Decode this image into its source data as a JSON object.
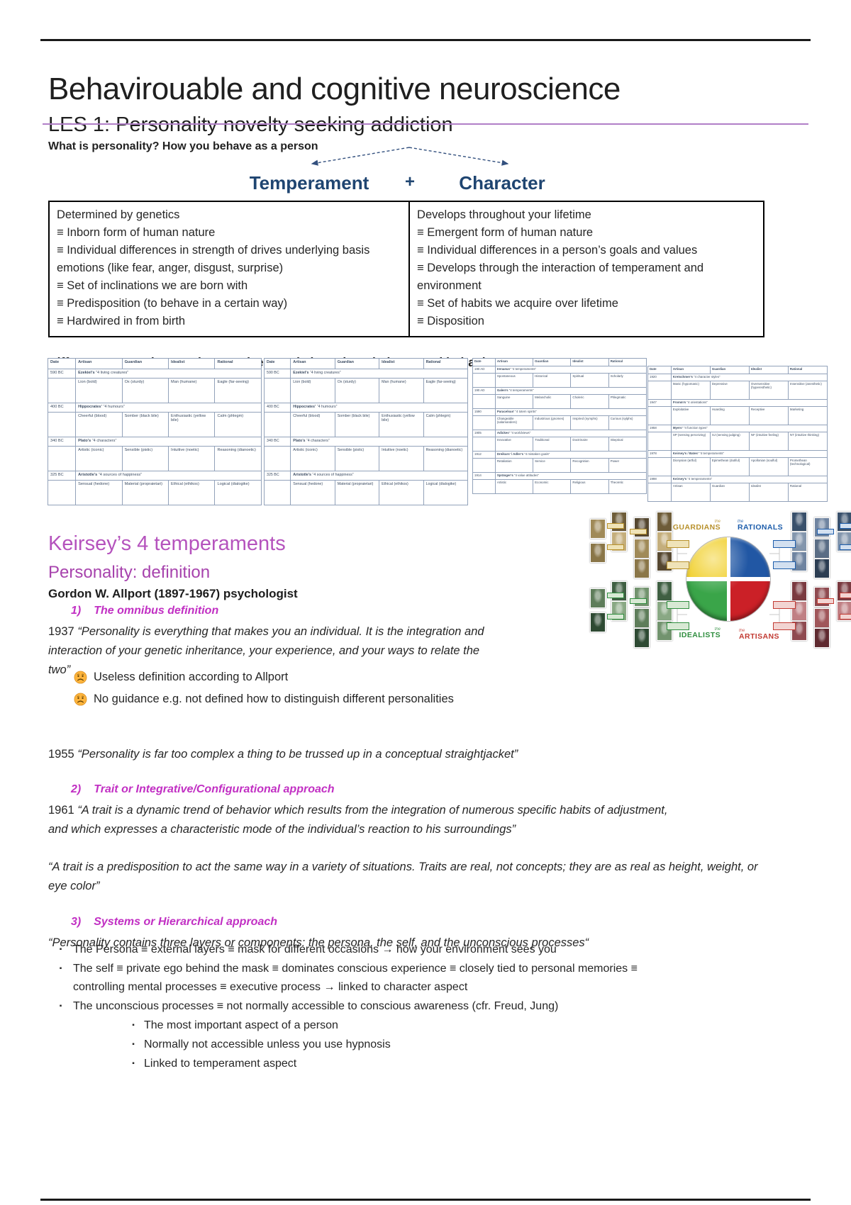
{
  "header": {
    "title": "Behavirouable and cognitive neuroscience",
    "subtitle": "LES 1: Personality novelty seeking addiction",
    "intro": "What is personality? How you behave as a person"
  },
  "split": {
    "left": "Temperament",
    "plus": "+",
    "right": "Character"
  },
  "comparison": {
    "temperament_lines": [
      "Determined by genetics",
      "≡ Inborn form of human nature",
      "≡ Individual differences in strength of drives underlying basis emotions (like fear, anger, disgust, surprise)",
      "≡ Set of inclinations we are born with",
      "≡ Predisposition (to behave in a certain way)",
      "≡ Hardwired in from birth"
    ],
    "character_lines": [
      "Develops throughout your lifetime",
      "≡ Emergent form of human nature",
      "≡ Individual differences in a person’s goals and values",
      "≡ Develops through the interaction of temperament and environment",
      "≡ Set of habits we acquire over lifetime",
      "≡ Disposition"
    ]
  },
  "approaches_heading": "Different approaches to characterize people based on their general behaviour",
  "history_tables": [
    {
      "header": [
        "Date",
        "Artisan",
        "Guardian",
        "Idealist",
        "Rational"
      ],
      "entries": [
        {
          "date": "590 BC",
          "author": "Ezekiel’s",
          "quote": "“4 living creatures”",
          "cells": [
            "Lion (bold)",
            "Ox (sturdy)",
            "Man (humane)",
            "Eagle (far-seeing)"
          ]
        },
        {
          "date": "400 BC",
          "author": "Hippocrates’",
          "quote": "“4 humours”",
          "cells": [
            "Cheerful (blood)",
            "Somber (black bile)",
            "Enthusiastic (yellow bile)",
            "Calm (phlegm)"
          ]
        },
        {
          "date": "340 BC",
          "author": "Plato’s",
          "quote": "“4 characters”",
          "cells": [
            "Artistic (iconic)",
            "Sensible (pistic)",
            "Intuitive (noetic)",
            "Reasoning (dianoetic)"
          ]
        },
        {
          "date": "325 BC",
          "author": "Aristotle’s",
          "quote": "“4 sources of happiness”",
          "cells": [
            "Sensual (hedone)",
            "Material (propraietari)",
            "Ethical (ethikos)",
            "Logical (dialogike)"
          ]
        }
      ]
    },
    {
      "header": [
        "Date",
        "Artisan",
        "Guardian",
        "Idealist",
        "Rational"
      ],
      "entries": [
        {
          "date": "590 BC",
          "author": "Ezekiel’s",
          "quote": "“4 living creatures”",
          "cells": [
            "Lion (bold)",
            "Ox (sturdy)",
            "Man (humane)",
            "Eagle (far-seeing)"
          ]
        },
        {
          "date": "400 BC",
          "author": "Hippocrates’",
          "quote": "“4 humours”",
          "cells": [
            "Cheerful (blood)",
            "Somber (black bile)",
            "Enthusiastic (yellow bile)",
            "Calm (phlegm)"
          ]
        },
        {
          "date": "340 BC",
          "author": "Plato’s",
          "quote": "“4 characters”",
          "cells": [
            "Artistic (iconic)",
            "Sensible (pistic)",
            "Intuitive (noetic)",
            "Reasoning (dianoetic)"
          ]
        },
        {
          "date": "325 BC",
          "author": "Aristotle’s",
          "quote": "“4 sources of happiness”",
          "cells": [
            "Sensual (hedone)",
            "Material (propraietari)",
            "Ethical (ethikos)",
            "Logical (dialogike)"
          ]
        }
      ]
    },
    {
      "header": [
        "Date",
        "Artisan",
        "Guardian",
        "Idealist",
        "Rational"
      ],
      "entries": [
        {
          "date": "190 AD",
          "author": "Irenaeus’",
          "quote": "“4 temperaments”",
          "cells": [
            "Spontaneous",
            "Historical",
            "Spiritual",
            "Scholarly"
          ]
        },
        {
          "date": "190 AD",
          "author": "Galen’s",
          "quote": "“4 temperaments”",
          "cells": [
            "Sanguine",
            "Melancholic",
            "Choleric",
            "Phlegmatic"
          ]
        },
        {
          "date": "1590",
          "author": "Paracelsus’",
          "quote": "“4 totem spirits”",
          "cells": [
            "Changeable (salamanders)",
            "Industrious (gnomes)",
            "Inspired (nymphs)",
            "Curious (sylphs)"
          ]
        },
        {
          "date": "1905",
          "author": "Adickes’",
          "quote": "“4 worldviews”",
          "cells": [
            "Innovative",
            "Traditional",
            "Doctrinaire",
            "Skeptical"
          ]
        },
        {
          "date": "1912",
          "author": "Dreikurs’ / Adler’s",
          "quote": "“4 mistaken goals”",
          "cells": [
            "Retaliation",
            "Service",
            "Recognition",
            "Power"
          ]
        },
        {
          "date": "1914",
          "author": "Spränger’s",
          "quote": "“4 value attitudes”",
          "cells": [
            "Artistic",
            "Economic",
            "Religious",
            "Theoretic"
          ]
        }
      ]
    },
    {
      "header": [
        "Date",
        "Artisan",
        "Guardian",
        "Idealist",
        "Rational"
      ],
      "entries": [
        {
          "date": "1920",
          "author": "Kretschmer’s",
          "quote": "“4 character styles”",
          "cells": [
            "Manic (hypomanic)",
            "Depressive",
            "Oversensitive (hyperesthetic)",
            "Insensitive (anesthetic)"
          ]
        },
        {
          "date": "1947",
          "author": "Fromm’s",
          "quote": "“4 orientations”",
          "cells": [
            "Exploitative",
            "Hoarding",
            "Receptive",
            "Marketing"
          ]
        },
        {
          "date": "1958",
          "author": "Myers’",
          "quote": "“4 function types”",
          "cells": [
            "SP (sensing perceiving)",
            "SJ (sensing judging)",
            "NF (intuitive feeling)",
            "NT (intuitive thinking)"
          ]
        },
        {
          "date": "1978",
          "author": "Keirsey’s / Bates’",
          "quote": "“4 temperaments”",
          "cells": [
            "Dionysian (artful)",
            "Epimethean (dutiful)",
            "Apollonian (soulful)",
            "Promethean (technological)"
          ]
        },
        {
          "date": "1998",
          "author": "Keirsey’s",
          "quote": "“4 temperaments”",
          "cells": [
            "Artisan",
            "Guardian",
            "Idealist",
            "Rational"
          ]
        }
      ]
    }
  ],
  "keirsey": {
    "heading": "Keirsey’s 4 temperaments",
    "groups": [
      {
        "article": "the",
        "name": "GUARDIANS",
        "color": "#b8912c"
      },
      {
        "article": "the",
        "name": "RATIONALS",
        "color": "#1d5dab"
      },
      {
        "article": "the",
        "name": "IDEALISTS",
        "color": "#2f8e3f"
      },
      {
        "article": "the",
        "name": "ARTISANS",
        "color": "#c23b33"
      }
    ],
    "quadrant_colors": {
      "top_left": "#f0cd1f",
      "top_right": "#2157a4",
      "bottom_left": "#3aa549",
      "bottom_right": "#cb2027"
    }
  },
  "definition": {
    "heading": "Personality: definition",
    "author": "Gordon W. Allport (1897-1967) psychologist",
    "sections": [
      {
        "num": "1)",
        "title": "The omnibus definition"
      },
      {
        "num": "2)",
        "title": "Trait or Integrative/Configurational approach"
      },
      {
        "num": "3)",
        "title": "Systems or Hierarchical approach"
      }
    ],
    "q1937": {
      "year": "1937",
      "text": "“Personality is everything that makes you an individual. It is the integration and interaction of your genetic inheritance, your experience, and your ways to relate the two”"
    },
    "cons": [
      "Useless definition according to Allport",
      "No guidance e.g. not defined how to distinguish different personalities"
    ],
    "q1955": {
      "year": "1955",
      "text": "“Personality is far too complex a thing to be trussed up in a conceptual straightjacket”"
    },
    "q1961": {
      "year": "1961",
      "text": "“A trait is a dynamic trend of behavior which results from the integration of numerous specific habits of adjustment, and which expresses a characteristic mode of the individual’s reaction to his surroundings”"
    },
    "trait_quote2": "“A trait is a predisposition to act the same way in a variety of situations. Traits are real, not concepts; they are as real as height, weight, or eye color”",
    "layers_quote": "“Personality contains three layers or components: the persona, the self, and the unconscious processes“"
  },
  "bullets": {
    "marker": "▪",
    "level1": [
      "The Persona ≡ external layers ≡ mask for different occasions → how your environment sees you",
      "The self ≡ private ego behind the mask ≡ dominates conscious experience ≡ closely tied to personal memories ≡ controlling mental processes ≡ executive process → linked to character aspect",
      "The unconscious processes ≡ not normally accessible to conscious awareness (cfr. Freud, Jung)"
    ],
    "level2": [
      "The most important aspect of a person",
      "Normally not accessible unless you use hypnosis",
      "Linked to temperament aspect"
    ]
  }
}
